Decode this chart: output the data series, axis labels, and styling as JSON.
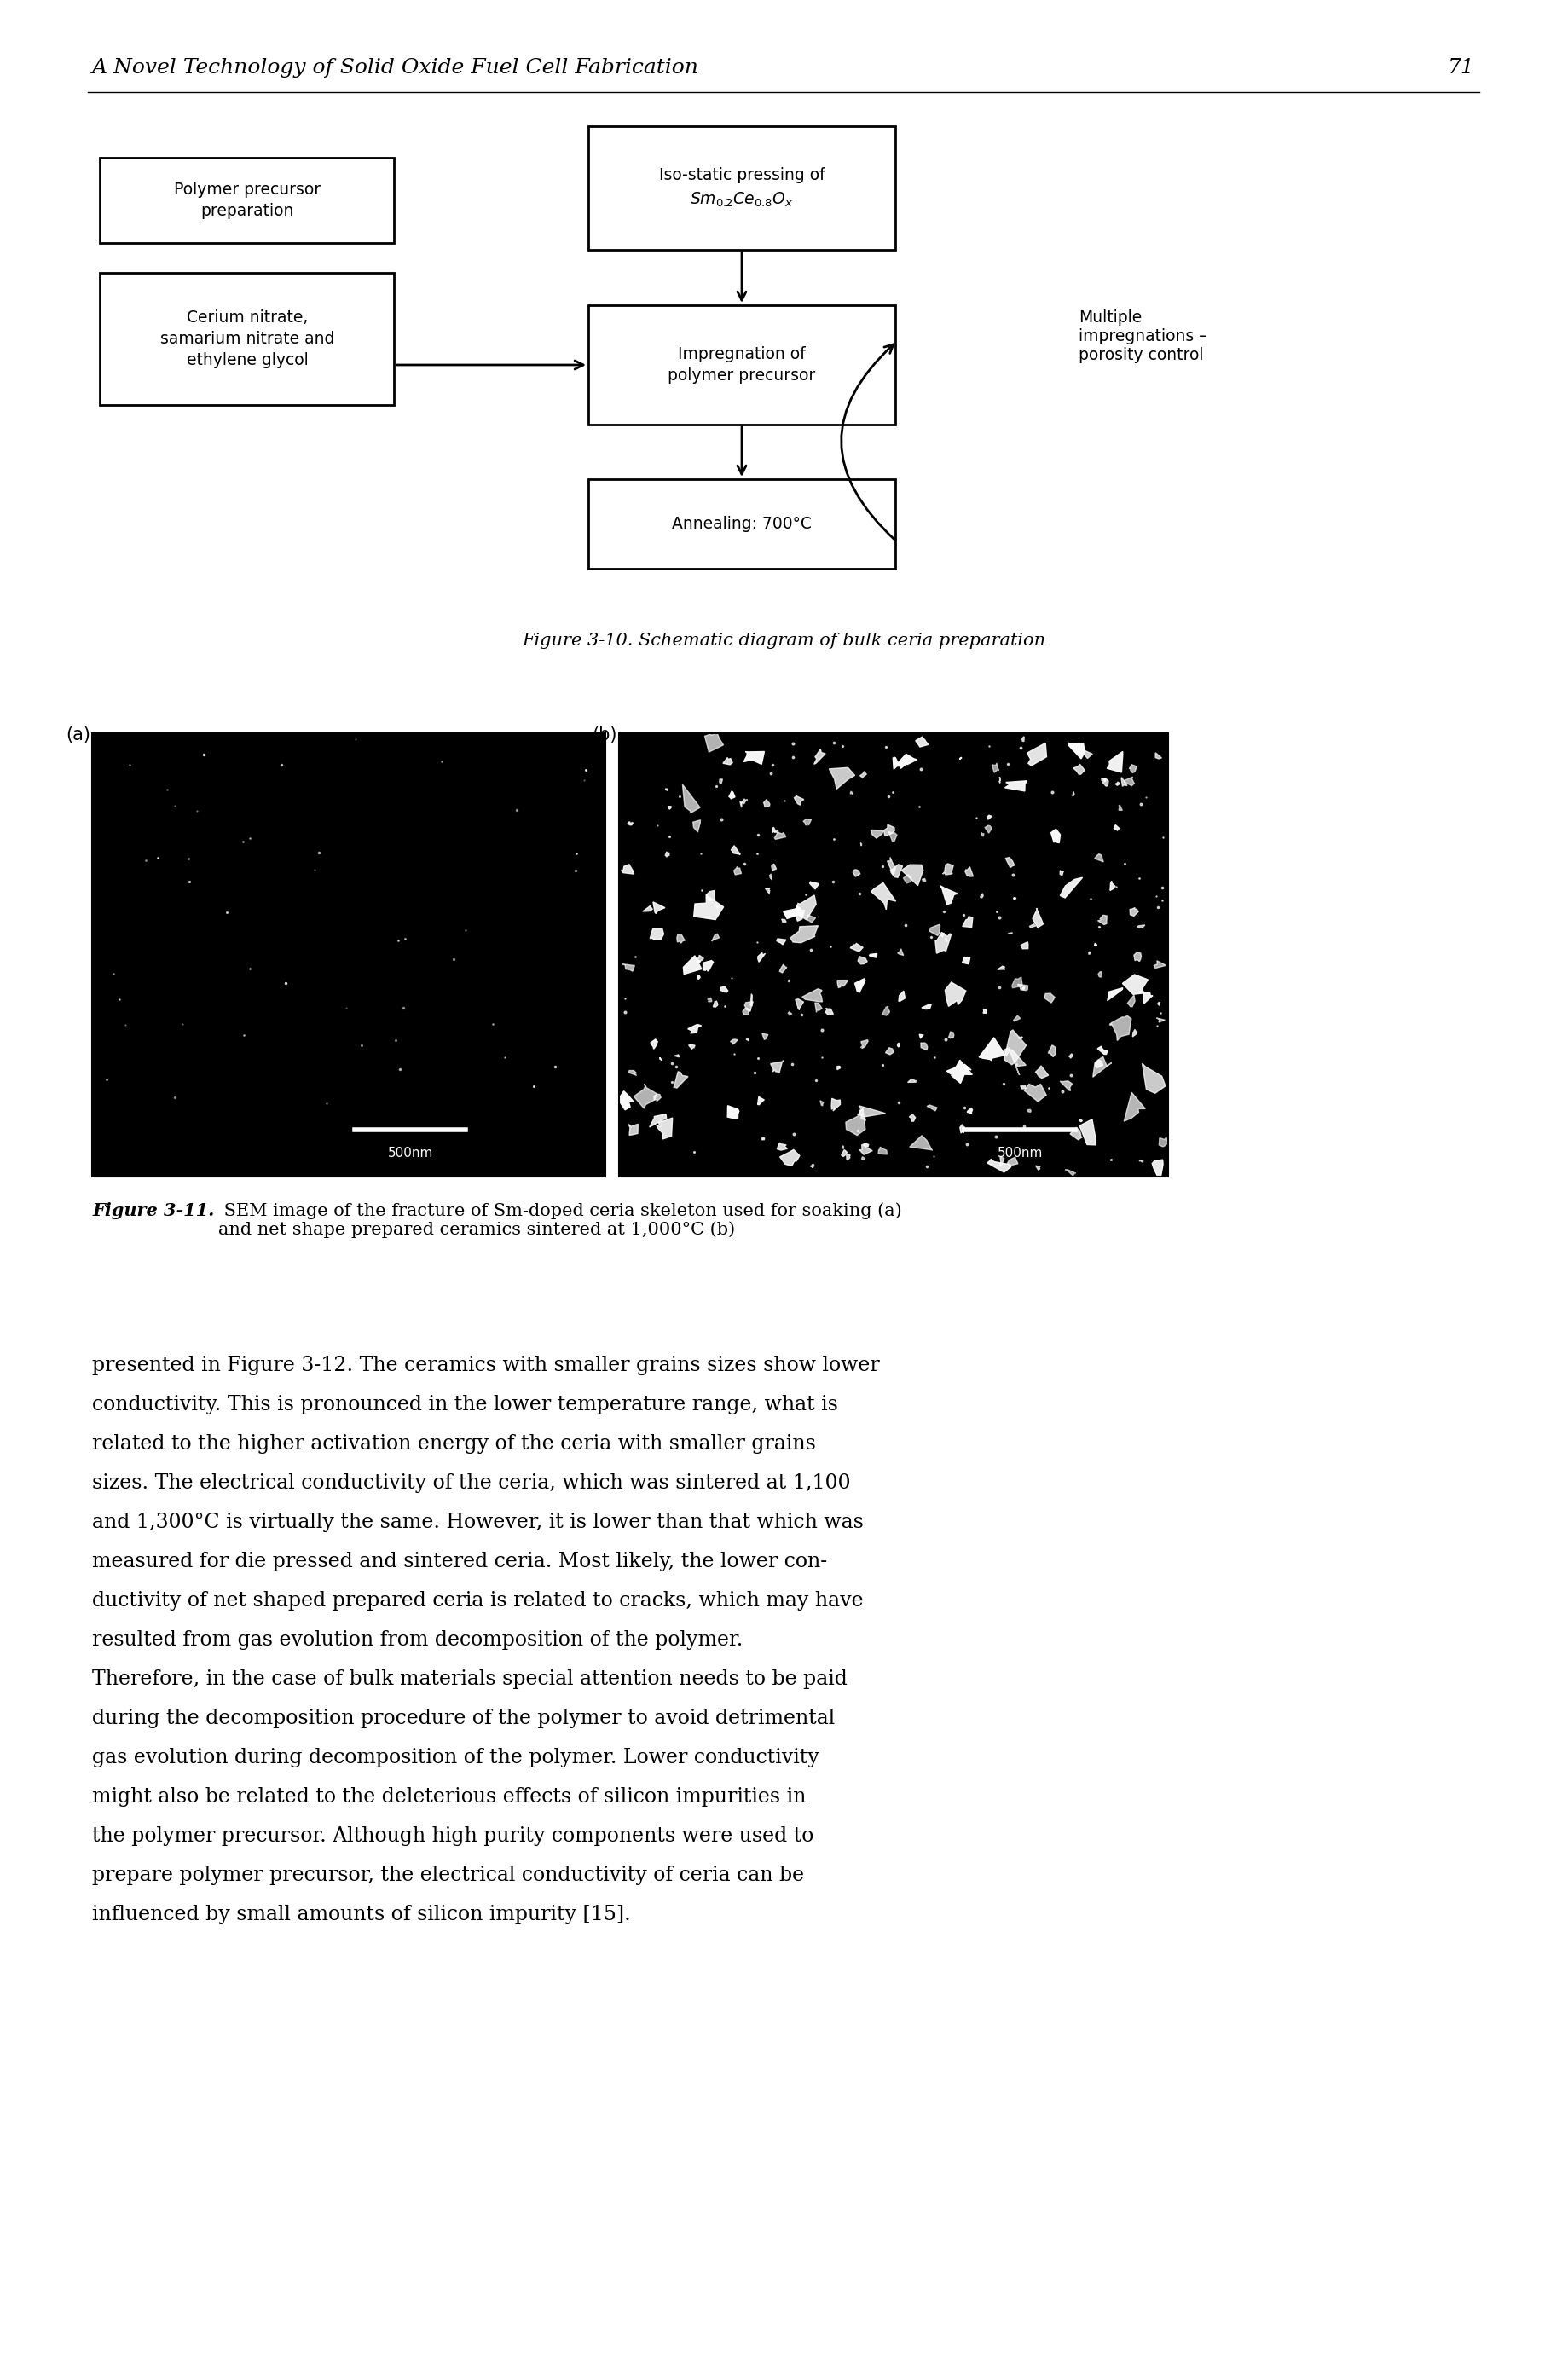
{
  "page_title": "A Novel Technology of Solid Oxide Fuel Cell Fabrication",
  "page_number": "71",
  "fig10_caption_italic": "Figure 3-10.",
  "fig10_caption_normal": " Schematic diagram of bulk ceria preparation",
  "fig11_caption_italic": "Figure 3-11.",
  "fig11_caption_normal": " SEM image of the fracture of Sm-doped ceria skeleton used for soaking (a)\nand net shape prepared ceramics sintered at 1,000°C (b)",
  "body_text_lines": [
    "presented in Figure 3-12. The ceramics with smaller grains sizes show lower",
    "conductivity. This is pronounced in the lower temperature range, what is",
    "related to the higher activation energy of the ceria with smaller grains",
    "sizes. The electrical conductivity of the ceria, which was sintered at 1,100",
    "and 1,300°C is virtually the same. However, it is lower than that which was",
    "measured for die pressed and sintered ceria. Most likely, the lower con-",
    "ductivity of net shaped prepared ceria is related to cracks, which may have",
    "resulted from gas evolution from decomposition of the polymer.",
    "Therefore, in the case of bulk materials special attention needs to be paid",
    "during the decomposition procedure of the polymer to avoid detrimental",
    "gas evolution during decomposition of the polymer. Lower conductivity",
    "might also be related to the deleterious effects of silicon impurities in",
    "the polymer precursor. Although high purity components were used to",
    "prepare polymer precursor, the electrical conductivity of ceria can be",
    "influenced by small amounts of silicon impurity [15]."
  ],
  "background_color": "#ffffff",
  "text_color": "#000000"
}
